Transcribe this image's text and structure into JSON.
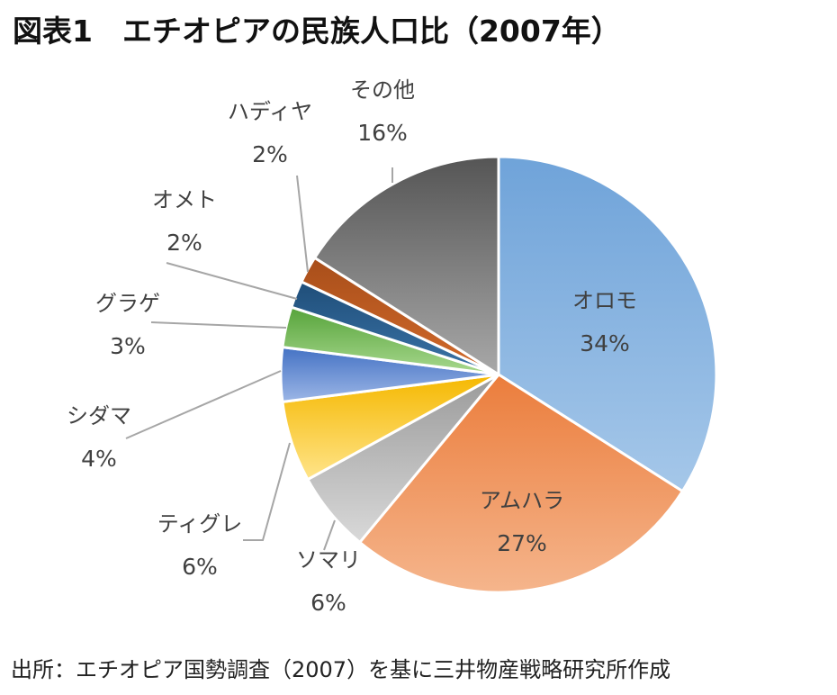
{
  "title": "図表1　エチオピアの民族人口比（2007年）",
  "source": "出所：エチオピア国勢調査（2007）を基に三井物産戦略研究所作成",
  "chart_data": {
    "type": "pie",
    "start_angle_deg": 0,
    "direction": "clockwise",
    "slices": [
      {
        "name": "オロモ",
        "value": 34,
        "label": "34%",
        "color": "#6fa3d9",
        "color_light": "#a5c7e9",
        "label_placement": "inside"
      },
      {
        "name": "アムハラ",
        "value": 27,
        "label": "27%",
        "color": "#eb7d3c",
        "color_light": "#f5b58c",
        "label_placement": "inside"
      },
      {
        "name": "ソマリ",
        "value": 6,
        "label": "6%",
        "color": "#9a9a9a",
        "color_light": "#d9d9d9",
        "label_placement": "outside"
      },
      {
        "name": "ティグレ",
        "value": 6,
        "label": "6%",
        "color": "#f5b800",
        "color_light": "#ffe48a",
        "label_placement": "outside"
      },
      {
        "name": "シダマ",
        "value": 4,
        "label": "4%",
        "color": "#4472c4",
        "color_light": "#9cb6e6",
        "label_placement": "outside"
      },
      {
        "name": "グラゲ",
        "value": 3,
        "label": "3%",
        "color": "#56a33a",
        "color_light": "#a9d98f",
        "label_placement": "outside"
      },
      {
        "name": "オメト",
        "value": 2,
        "label": "2%",
        "color": "#1f4e79",
        "color_light": "#3b74a8",
        "label_placement": "outside"
      },
      {
        "name": "ハディヤ",
        "value": 2,
        "label": "2%",
        "color": "#a84e1a",
        "color_light": "#d26a2b",
        "label_placement": "outside"
      },
      {
        "name": "その他",
        "value": 16,
        "label": "16%",
        "color": "#555555",
        "color_light": "#a8a8a8",
        "label_placement": "outside"
      }
    ]
  }
}
